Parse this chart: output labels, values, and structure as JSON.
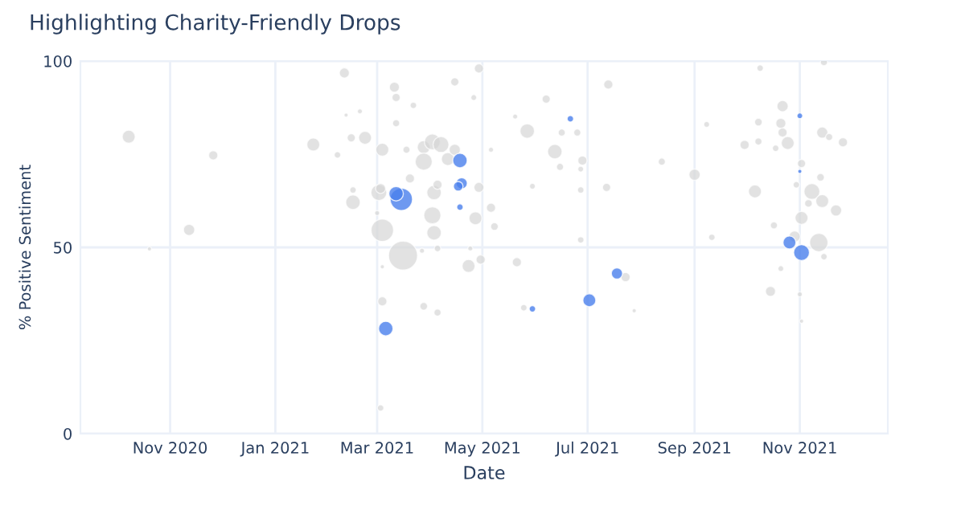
{
  "chart_data": {
    "type": "bubble",
    "title": "Highlighting Charity-Friendly Drops",
    "xlabel": "Date",
    "ylabel": "% Positive Sentiment",
    "xlim": [
      "2020-09-10",
      "2021-12-22"
    ],
    "ylim": [
      0,
      100
    ],
    "yticks": [
      0,
      50,
      100
    ],
    "xticks": [
      {
        "value": "2020-11-01",
        "label": "Nov 2020"
      },
      {
        "value": "2021-01-01",
        "label": "Jan 2021"
      },
      {
        "value": "2021-03-01",
        "label": "Mar 2021"
      },
      {
        "value": "2021-05-01",
        "label": "May 2021"
      },
      {
        "value": "2021-07-01",
        "label": "Jul 2021"
      },
      {
        "value": "2021-09-01",
        "label": "Sep 2021"
      },
      {
        "value": "2021-11-01",
        "label": "Nov 2021"
      }
    ],
    "grid": true,
    "marker": "circle",
    "series": [
      {
        "color": "#d6d6d6",
        "x": [
          "2020-10-08",
          "2020-10-20",
          "2020-11-12",
          "2020-11-26",
          "2021-01-23",
          "2021-02-10",
          "2021-02-11",
          "2021-02-19",
          "2021-02-14",
          "2021-02-22",
          "2021-02-06",
          "2021-02-15",
          "2021-02-15",
          "2021-03-01",
          "2021-03-02",
          "2021-03-04",
          "2021-03-04",
          "2021-03-04",
          "2021-03-03",
          "2021-03-04",
          "2021-03-11",
          "2021-03-12",
          "2021-03-22",
          "2021-03-12",
          "2021-03-18",
          "2021-03-28",
          "2021-04-02",
          "2021-04-07",
          "2021-03-28",
          "2021-04-11",
          "2021-04-15",
          "2021-03-20",
          "2021-03-03",
          "2021-04-03",
          "2021-04-05",
          "2021-04-29",
          "2021-04-02",
          "2021-04-03",
          "2021-04-27",
          "2021-05-06",
          "2021-05-08",
          "2021-03-16",
          "2021-03-27",
          "2021-04-05",
          "2021-04-24",
          "2021-04-23",
          "2021-04-30",
          "2021-05-21",
          "2021-03-28",
          "2021-04-05",
          "2021-05-25",
          "2021-04-15",
          "2021-04-29",
          "2021-04-26",
          "2021-05-06",
          "2021-05-20",
          "2021-05-27",
          "2021-06-07",
          "2021-06-12",
          "2021-05-30",
          "2021-07-13",
          "2021-06-15",
          "2021-06-28",
          "2021-06-27",
          "2021-06-25",
          "2021-06-16",
          "2021-06-27",
          "2021-07-12",
          "2021-06-27",
          "2021-08-13",
          "2021-09-01",
          "2021-07-23",
          "2021-07-28",
          "2021-09-11",
          "2021-09-08",
          "2021-10-09",
          "2021-11-15",
          "2021-10-22",
          "2021-10-21",
          "2021-10-22",
          "2021-10-25",
          "2021-10-08",
          "2021-09-30",
          "2021-10-08",
          "2021-10-18",
          "2021-11-14",
          "2021-11-18",
          "2021-11-26",
          "2021-11-02",
          "2021-11-13",
          "2021-10-06",
          "2021-10-30",
          "2021-11-08",
          "2021-11-06",
          "2021-11-14",
          "2021-11-22",
          "2021-11-02",
          "2021-10-17",
          "2021-10-29",
          "2021-11-12",
          "2021-11-15",
          "2021-10-21",
          "2021-10-15",
          "2021-11-01",
          "2021-11-02"
        ],
        "values": [
          79.7,
          49.6,
          54.7,
          74.7,
          77.6,
          96.8,
          85.5,
          86.5,
          79.4,
          79.4,
          74.8,
          65.4,
          62.1,
          59.2,
          64.7,
          76.2,
          54.6,
          35.5,
          6.9,
          44.8,
          93.0,
          90.2,
          88.1,
          83.3,
          76.2,
          76.9,
          78.3,
          77.6,
          73.0,
          73.7,
          76.2,
          68.5,
          65.8,
          64.7,
          66.8,
          66.1,
          58.6,
          53.9,
          57.8,
          60.6,
          55.6,
          47.8,
          49.1,
          49.7,
          49.7,
          45.0,
          46.7,
          46.0,
          34.2,
          32.5,
          33.8,
          94.4,
          98.0,
          90.2,
          76.2,
          85.1,
          81.2,
          89.8,
          75.7,
          66.4,
          93.7,
          71.6,
          73.3,
          71.0,
          80.8,
          80.8,
          65.4,
          66.1,
          52.0,
          73.0,
          69.5,
          42.0,
          33.0,
          52.7,
          83.0,
          98.1,
          99.7,
          87.9,
          83.3,
          80.8,
          78.0,
          83.6,
          77.5,
          78.4,
          76.6,
          80.8,
          79.6,
          78.2,
          72.5,
          68.8,
          65.0,
          66.8,
          65.0,
          61.8,
          62.4,
          59.9,
          57.9,
          55.9,
          52.9,
          51.3,
          47.5,
          44.3,
          38.2,
          37.4,
          30.2
        ],
        "sizes": [
          0.2,
          0.02,
          0.15,
          0.1,
          0.2,
          0.12,
          0.02,
          0.03,
          0.08,
          0.2,
          0.05,
          0.05,
          0.25,
          0.03,
          0.3,
          0.2,
          0.6,
          0.1,
          0.05,
          0.02,
          0.12,
          0.08,
          0.05,
          0.06,
          0.06,
          0.2,
          0.3,
          0.3,
          0.35,
          0.2,
          0.15,
          0.1,
          0.12,
          0.25,
          0.1,
          0.12,
          0.35,
          0.25,
          0.2,
          0.1,
          0.07,
          1,
          0.03,
          0.05,
          0.03,
          0.2,
          0.1,
          0.1,
          0.07,
          0.06,
          0.05,
          0.08,
          0.1,
          0.04,
          0.03,
          0.03,
          0.25,
          0.08,
          0.25,
          0.04,
          0.1,
          0.06,
          0.1,
          0.04,
          0.06,
          0.06,
          0.05,
          0.08,
          0.05,
          0.06,
          0.15,
          0.1,
          0.02,
          0.05,
          0.04,
          0.05,
          0.06,
          0.15,
          0.12,
          0.1,
          0.2,
          0.07,
          0.1,
          0.06,
          0.05,
          0.15,
          0.06,
          0.1,
          0.08,
          0.07,
          0.2,
          0.05,
          0.3,
          0.07,
          0.2,
          0.15,
          0.2,
          0.06,
          0.15,
          0.4,
          0.05,
          0.04,
          0.12,
          0.03,
          0.02
        ]
      },
      {
        "color": "#4a7fec",
        "x": [
          "2021-03-15",
          "2021-03-12",
          "2021-04-18",
          "2021-04-19",
          "2021-04-17",
          "2021-04-18",
          "2021-03-06",
          "2021-05-30",
          "2021-06-21",
          "2021-07-02",
          "2021-07-18",
          "2021-11-01",
          "2021-11-01",
          "2021-10-26",
          "2021-11-02"
        ],
        "values": [
          62.9,
          64.4,
          73.3,
          67.2,
          66.4,
          60.8,
          28.2,
          33.5,
          84.5,
          35.8,
          43.0,
          85.3,
          70.4,
          51.3,
          48.6
        ],
        "sizes": [
          0.6,
          0.25,
          0.25,
          0.15,
          0.11,
          0.05,
          0.25,
          0.05,
          0.05,
          0.2,
          0.15,
          0.04,
          0.02,
          0.2,
          0.3
        ]
      }
    ]
  }
}
